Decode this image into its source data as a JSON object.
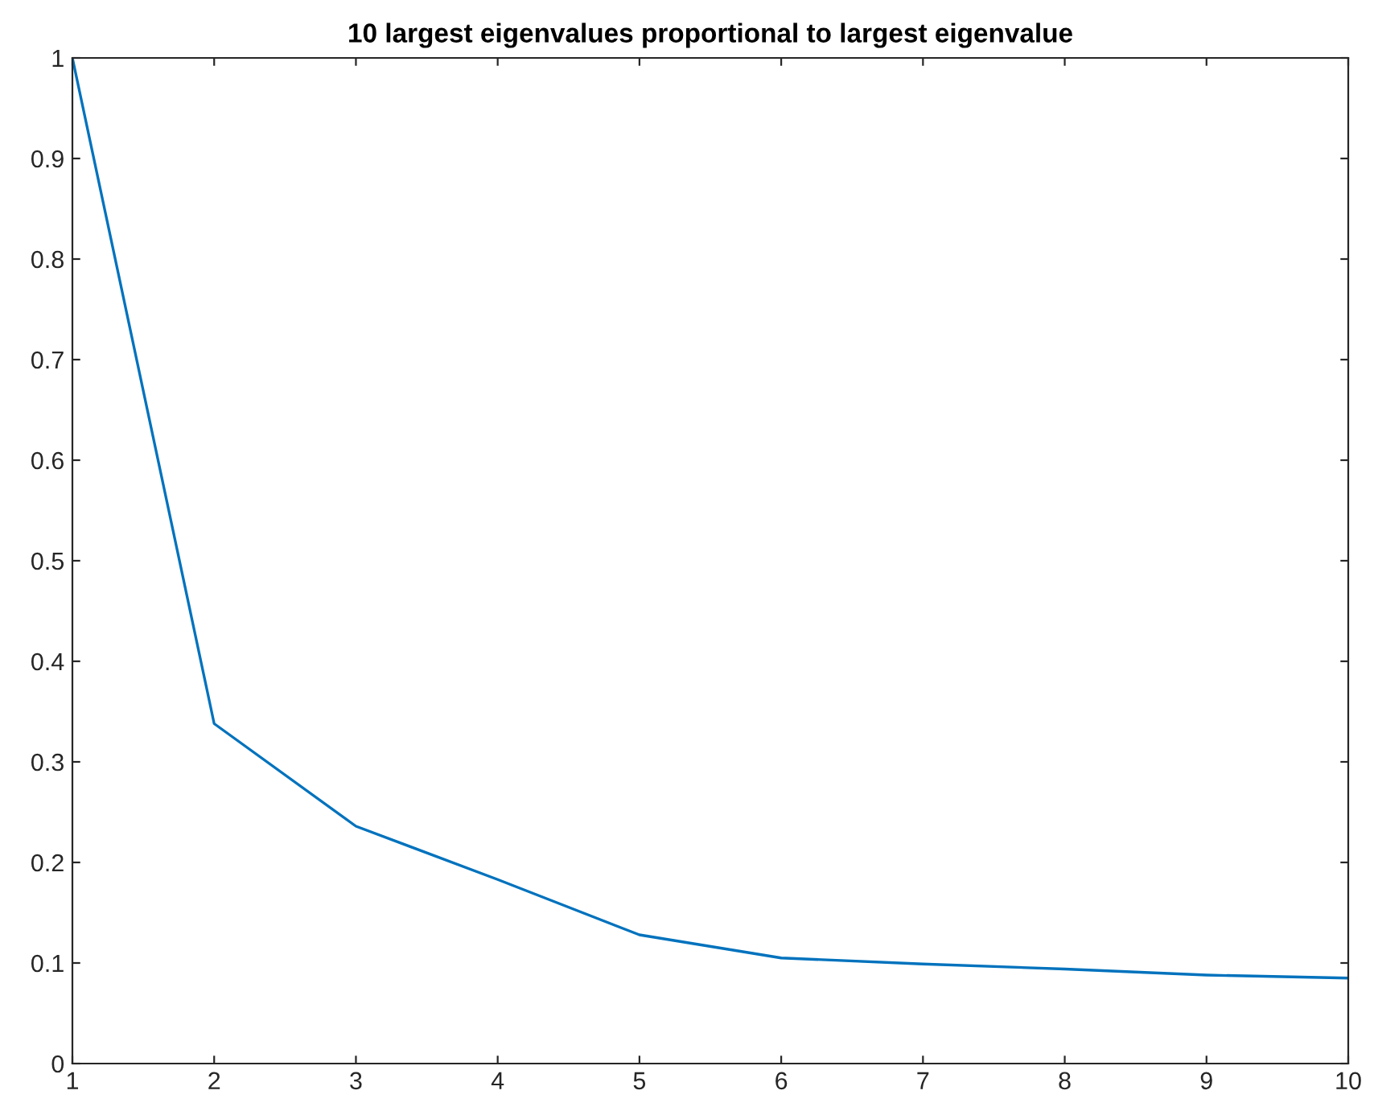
{
  "chart_data": {
    "type": "line",
    "title": "10 largest eigenvalues proportional to largest eigenvalue",
    "x": [
      1,
      2,
      3,
      4,
      5,
      6,
      7,
      8,
      9,
      10
    ],
    "series": [
      {
        "color": "#0072bd",
        "values": [
          1.0,
          0.338,
          0.236,
          0.183,
          0.128,
          0.105,
          0.099,
          0.094,
          0.088,
          0.085
        ]
      }
    ],
    "xlim": [
      1,
      10
    ],
    "xticks": [
      1,
      2,
      3,
      4,
      5,
      6,
      7,
      8,
      9,
      10
    ],
    "ylim": [
      0,
      1
    ],
    "yticks": [
      0,
      0.1,
      0.2,
      0.3,
      0.4,
      0.5,
      0.6,
      0.7,
      0.8,
      0.9,
      1
    ],
    "grid": false,
    "legend": false,
    "marker": "none",
    "line_style": "solid"
  }
}
